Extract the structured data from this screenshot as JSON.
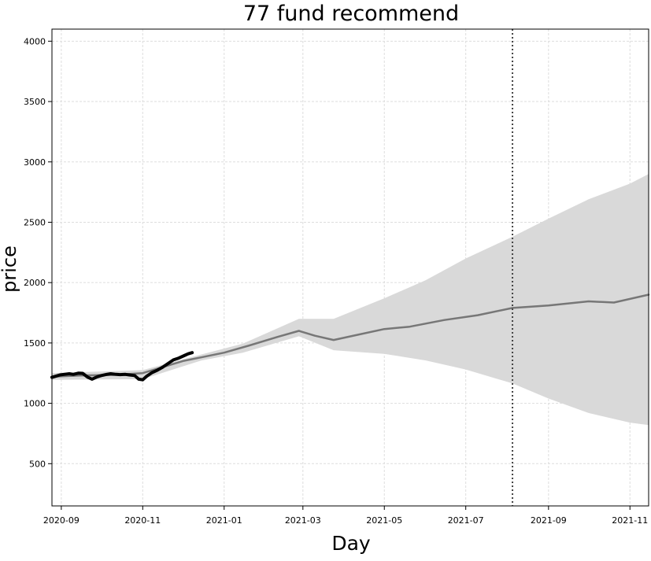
{
  "chart_data": {
    "type": "line",
    "title": "77 fund recommend",
    "xlabel": "Day",
    "ylabel": "price",
    "x_axis_type": "date",
    "xlim": [
      "2020-08-25",
      "2021-11-15"
    ],
    "ylim": [
      150,
      4100
    ],
    "x_ticks": [
      "2020-09-01",
      "2020-11-01",
      "2021-01-01",
      "2021-03-01",
      "2021-05-01",
      "2021-07-01",
      "2021-09-01",
      "2021-11-01"
    ],
    "x_tick_labels": [
      "2020-09",
      "2020-11",
      "2021-01",
      "2021-03",
      "2021-05",
      "2021-07",
      "2021-09",
      "2021-11"
    ],
    "y_ticks": [
      500,
      1000,
      1500,
      2000,
      2500,
      3000,
      3500,
      4000
    ],
    "grid": true,
    "vline": {
      "x": "2021-08-05",
      "style": "dotted"
    },
    "colors": {
      "actual": "#000000",
      "forecast": "#777777",
      "interval": "#d9d9d9",
      "grid": "#dddddd",
      "vline": "#444444"
    },
    "series": [
      {
        "role": "actual",
        "points": [
          [
            "2020-08-25",
            1215
          ],
          [
            "2020-08-28",
            1225
          ],
          [
            "2020-08-31",
            1235
          ],
          [
            "2020-09-03",
            1240
          ],
          [
            "2020-09-07",
            1245
          ],
          [
            "2020-09-10",
            1240
          ],
          [
            "2020-09-14",
            1250
          ],
          [
            "2020-09-17",
            1248
          ],
          [
            "2020-09-21",
            1215
          ],
          [
            "2020-09-24",
            1200
          ],
          [
            "2020-09-28",
            1220
          ],
          [
            "2020-10-01",
            1230
          ],
          [
            "2020-10-05",
            1240
          ],
          [
            "2020-10-08",
            1245
          ],
          [
            "2020-10-12",
            1240
          ],
          [
            "2020-10-15",
            1238
          ],
          [
            "2020-10-19",
            1240
          ],
          [
            "2020-10-22",
            1235
          ],
          [
            "2020-10-26",
            1230
          ],
          [
            "2020-10-29",
            1200
          ],
          [
            "2020-11-01",
            1195
          ],
          [
            "2020-11-04",
            1225
          ],
          [
            "2020-11-08",
            1255
          ],
          [
            "2020-11-12",
            1275
          ],
          [
            "2020-11-16",
            1300
          ],
          [
            "2020-11-20",
            1330
          ],
          [
            "2020-11-24",
            1360
          ],
          [
            "2020-11-28",
            1375
          ],
          [
            "2020-12-02",
            1395
          ],
          [
            "2020-12-05",
            1410
          ],
          [
            "2020-12-08",
            1420
          ]
        ]
      },
      {
        "role": "forecast",
        "points": [
          [
            "2020-08-25",
            1220
          ],
          [
            "2020-09-15",
            1230
          ],
          [
            "2020-10-10",
            1235
          ],
          [
            "2020-11-01",
            1250
          ],
          [
            "2020-12-01",
            1350
          ],
          [
            "2021-01-01",
            1420
          ],
          [
            "2021-01-20",
            1480
          ],
          [
            "2021-02-10",
            1550
          ],
          [
            "2021-02-26",
            1600
          ],
          [
            "2021-03-10",
            1560
          ],
          [
            "2021-03-24",
            1525
          ],
          [
            "2021-04-10",
            1565
          ],
          [
            "2021-05-01",
            1615
          ],
          [
            "2021-05-20",
            1635
          ],
          [
            "2021-06-15",
            1690
          ],
          [
            "2021-07-10",
            1730
          ],
          [
            "2021-08-05",
            1790
          ],
          [
            "2021-09-01",
            1810
          ],
          [
            "2021-10-01",
            1845
          ],
          [
            "2021-10-20",
            1835
          ],
          [
            "2021-11-15",
            1900
          ]
        ]
      }
    ],
    "interval": [
      [
        "2020-08-25",
        1195,
        1250
      ],
      [
        "2020-11-01",
        1200,
        1275
      ],
      [
        "2020-12-15",
        1355,
        1405
      ],
      [
        "2021-01-15",
        1420,
        1495
      ],
      [
        "2021-02-26",
        1555,
        1700
      ],
      [
        "2021-03-24",
        1440,
        1700
      ],
      [
        "2021-05-01",
        1410,
        1870
      ],
      [
        "2021-06-01",
        1355,
        2020
      ],
      [
        "2021-07-01",
        1280,
        2200
      ],
      [
        "2021-08-05",
        1165,
        2380
      ],
      [
        "2021-09-01",
        1040,
        2530
      ],
      [
        "2021-10-01",
        920,
        2690
      ],
      [
        "2021-11-01",
        840,
        2820
      ],
      [
        "2021-11-15",
        820,
        2900
      ]
    ]
  }
}
